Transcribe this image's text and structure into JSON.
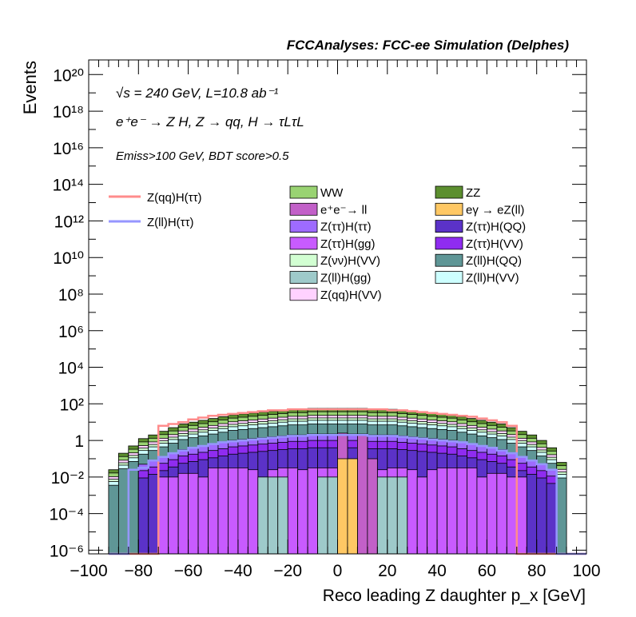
{
  "header": "FCCAnalyses: FCC-ee Simulation (Delphes)",
  "annotations": {
    "line1": "√s = 240 GeV, L=10.8 ab⁻¹",
    "line2": "e⁺e⁻ → Z H, Z → qq, H → τLτL",
    "line3": "Emiss>100 GeV, BDT score>0.5"
  },
  "axes": {
    "xlabel": "Reco leading Z daughter p_x [GeV]",
    "ylabel": "Events",
    "x_ticks": [
      "−100",
      "−80",
      "−60",
      "−40",
      "−20",
      "0",
      "20",
      "40",
      "60",
      "80",
      "100"
    ],
    "y_ticks": [
      "10⁻⁶",
      "10⁻⁴",
      "10⁻²",
      "1",
      "10²",
      "10⁴",
      "10⁶",
      "10⁸",
      "10¹⁰",
      "10¹²",
      "10¹⁴",
      "10¹⁶",
      "10¹⁸",
      "10²⁰"
    ]
  },
  "colors": {
    "WW": "#99d372",
    "ZZ": "#5c8f2f",
    "ee_ll": "#c260c8",
    "egamma": "#ffc864",
    "tt_tt": "#9e6bff",
    "tt_QQ": "#5b32c8",
    "tt_gg": "#c85bff",
    "tt_VV": "#8f2cf0",
    "nn_VV": "#d2ffd2",
    "ll_QQ": "#5f9696",
    "ll_gg": "#9ecaca",
    "ll_VV": "#cdffff",
    "qq_VV": "#ffd2ff",
    "sig_qq": "#ff8c8c",
    "sig_ll": "#9696ff"
  },
  "chart_data": {
    "type": "stacked-histogram",
    "xlim": [
      -100,
      100
    ],
    "ylim_log10": [
      -6.2,
      20.8
    ],
    "y_scale": "log",
    "bin_width": 4,
    "bin_low_edges": [
      -92,
      -88,
      -84,
      -80,
      -76,
      -72,
      -68,
      -64,
      -60,
      -56,
      -52,
      -48,
      -44,
      -40,
      -36,
      -32,
      -28,
      -24,
      -20,
      -16,
      -12,
      -8,
      -4,
      0,
      4,
      8,
      12,
      16,
      20,
      24,
      28,
      32,
      36,
      40,
      44,
      48,
      52,
      56,
      60,
      64,
      68,
      72,
      76,
      80,
      84,
      88
    ],
    "stack_order": [
      "ll_gg",
      "egamma",
      "ee_ll",
      "tt_gg",
      "tt_QQ",
      "tt_VV",
      "tt_tt",
      "ll_QQ",
      "ll_VV",
      "nn_VV",
      "qq_VV",
      "WW",
      "ZZ"
    ],
    "legend": [
      {
        "key": "WW",
        "label": "WW"
      },
      {
        "key": "ZZ",
        "label": "ZZ"
      },
      {
        "key": "ee_ll",
        "label": "e⁺e⁻→ ll"
      },
      {
        "key": "egamma",
        "label": "eγ → eZ(ll)"
      },
      {
        "key": "tt_tt",
        "label": "Z(ττ)H(ττ)"
      },
      {
        "key": "tt_QQ",
        "label": "Z(ττ)H(QQ)"
      },
      {
        "key": "tt_gg",
        "label": "Z(ττ)H(gg)"
      },
      {
        "key": "tt_VV",
        "label": "Z(ττ)H(VV)"
      },
      {
        "key": "nn_VV",
        "label": "Z(νν)H(VV)"
      },
      {
        "key": "ll_QQ",
        "label": "Z(ll)H(QQ)"
      },
      {
        "key": "ll_gg",
        "label": "Z(ll)H(gg)"
      },
      {
        "key": "ll_VV",
        "label": "Z(ll)H(VV)"
      },
      {
        "key": "qq_VV",
        "label": "Z(qq)H(VV)"
      }
    ],
    "signal_legend": [
      {
        "key": "sig_qq",
        "label": "Z(qq)H(ττ)"
      },
      {
        "key": "sig_ll",
        "label": "Z(ll)H(ττ)"
      }
    ],
    "stack_totals_log10": [
      -1.6,
      -0.7,
      -0.3,
      0.1,
      0.3,
      0.5,
      0.7,
      0.9,
      1.0,
      1.1,
      1.2,
      1.3,
      1.4,
      1.45,
      1.5,
      1.55,
      1.6,
      1.65,
      1.7,
      1.7,
      1.75,
      1.75,
      1.75,
      1.75,
      1.75,
      1.75,
      1.7,
      1.7,
      1.7,
      1.65,
      1.6,
      1.55,
      1.5,
      1.45,
      1.4,
      1.3,
      1.2,
      1.1,
      1.0,
      0.9,
      0.7,
      0.5,
      0.3,
      0.0,
      -0.4,
      -1.2
    ],
    "tt_tt_top_log10": [
      -6.2,
      -6.2,
      -6.2,
      -1.3,
      -1.1,
      -0.9,
      -0.7,
      -0.5,
      -0.4,
      -0.3,
      -0.2,
      -0.1,
      0.0,
      0.05,
      0.1,
      0.15,
      0.2,
      0.25,
      0.3,
      0.3,
      0.35,
      0.35,
      0.35,
      0.35,
      0.35,
      0.35,
      0.3,
      0.3,
      0.3,
      0.25,
      0.2,
      0.15,
      0.1,
      0.05,
      0.0,
      -0.1,
      -0.2,
      -0.3,
      -0.4,
      -0.5,
      -0.7,
      -0.9,
      -1.1,
      -1.3,
      -1.6,
      -6.2
    ],
    "tt_gg_top_log10": [
      -6.2,
      -6.2,
      -6.2,
      -6.2,
      -6.2,
      -2.0,
      -2.0,
      -1.8,
      -1.8,
      -2.0,
      -1.5,
      -1.5,
      -1.5,
      -1.5,
      -1.6,
      -2.0,
      -1.6,
      -1.5,
      -1.5,
      -1.6,
      -1.5,
      -1.5,
      -1.5,
      -1.4,
      -1.4,
      -1.5,
      -1.5,
      -1.6,
      -1.5,
      -1.5,
      -1.6,
      -2.0,
      -1.6,
      -1.5,
      -1.5,
      -1.5,
      -1.5,
      -2.0,
      -1.8,
      -1.8,
      -2.0,
      -2.0,
      -6.2,
      -6.2,
      -6.2,
      -6.2
    ],
    "ll_gg_top_log10": [
      -6.2,
      -6.2,
      -6.2,
      -6.2,
      -6.2,
      -6.2,
      -6.2,
      -6.2,
      -6.2,
      -6.2,
      -6.2,
      -6.2,
      -6.2,
      -6.2,
      -6.2,
      -2.0,
      -2.0,
      -2.0,
      -6.2,
      -6.2,
      -6.2,
      -2.0,
      -2.0,
      -6.2,
      -6.2,
      -6.2,
      -6.2,
      -2.0,
      -2.0,
      -2.0,
      -6.2,
      -6.2,
      -6.2,
      -6.2,
      -6.2,
      -6.2,
      -6.2,
      -6.2,
      -6.2,
      -6.2,
      -6.2,
      -6.2,
      -6.2,
      -6.2,
      -6.2,
      -6.2
    ],
    "egamma_top_log10": [
      -6.2,
      -6.2,
      -6.2,
      -6.2,
      -6.2,
      -6.2,
      -6.2,
      -6.2,
      -6.2,
      -6.2,
      -6.2,
      -6.2,
      -6.2,
      -6.2,
      -6.2,
      -6.2,
      -6.2,
      -6.2,
      -6.2,
      -6.2,
      -6.2,
      -6.2,
      -6.2,
      -1.0,
      -1.0,
      -6.2,
      -6.2,
      -6.2,
      -6.2,
      -6.2,
      -6.2,
      -6.2,
      -6.2,
      -6.2,
      -6.2,
      -6.2,
      -6.2,
      -6.2,
      -6.2,
      -6.2,
      -6.2,
      -6.2,
      -6.2,
      -6.2,
      -6.2,
      -6.2
    ],
    "ee_ll_top_log10": [
      -6.2,
      -6.2,
      -6.2,
      -6.2,
      -6.2,
      -6.2,
      -6.2,
      -6.2,
      -6.2,
      -6.2,
      -6.2,
      -6.2,
      -6.2,
      -6.2,
      -6.2,
      -6.2,
      -6.2,
      -6.2,
      -6.2,
      -6.2,
      -6.2,
      -6.2,
      -6.2,
      0.4,
      -1.0,
      0.3,
      -1.0,
      -6.2,
      -6.2,
      -6.2,
      -6.2,
      -6.2,
      -6.2,
      -6.2,
      -6.2,
      -6.2,
      -6.2,
      -6.2,
      -6.2,
      -6.2,
      -6.2,
      -6.2,
      -6.2,
      -6.2,
      -6.2,
      -6.2
    ],
    "signal_qq_log10": [
      -6.2,
      -6.2,
      -6.2,
      -6.2,
      -6.2,
      0.8,
      0.9,
      1.0,
      1.15,
      1.25,
      1.35,
      1.4,
      1.45,
      1.5,
      1.55,
      1.6,
      1.65,
      1.65,
      1.7,
      1.7,
      1.7,
      1.7,
      1.7,
      1.7,
      1.7,
      1.7,
      1.7,
      1.7,
      1.65,
      1.65,
      1.6,
      1.55,
      1.5,
      1.45,
      1.4,
      1.35,
      1.3,
      1.2,
      1.1,
      1.0,
      0.8,
      -6.2,
      -6.2,
      -6.2,
      -6.2,
      -6.2
    ],
    "signal_ll_log10": [
      -6.2,
      -6.2,
      -1.6,
      -1.5,
      -1.1,
      -0.9,
      -0.7,
      -0.55,
      -0.4,
      -0.3,
      -0.2,
      -0.1,
      -0.05,
      0.0,
      0.05,
      0.1,
      0.15,
      0.2,
      0.25,
      0.25,
      0.3,
      0.3,
      0.3,
      0.3,
      0.3,
      0.3,
      0.25,
      0.25,
      0.25,
      0.2,
      0.15,
      0.1,
      0.05,
      0.0,
      -0.05,
      -0.1,
      -0.2,
      -0.3,
      -0.4,
      -0.55,
      -0.7,
      -0.9,
      -1.1,
      -1.3,
      -1.6,
      -6.2
    ]
  }
}
